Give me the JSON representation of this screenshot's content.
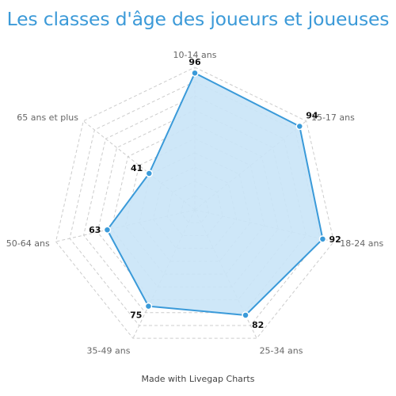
{
  "chart_data": {
    "type": "radar",
    "title": "Les classes d'âge des joueurs et joueuses",
    "categories": [
      "10-14 ans",
      "15-17 ans",
      "18-24 ans",
      "25-34 ans",
      "35-49 ans",
      "50-64 ans",
      "65 ans et plus"
    ],
    "series": [
      {
        "values": [
          96,
          94,
          92,
          82,
          75,
          63,
          41
        ]
      }
    ],
    "rlim": [
      0,
      100
    ],
    "grid": true,
    "legend": "none",
    "colors": {
      "line": "#3a9ad9",
      "fill": "#c9e4f7",
      "grid": "#cccccc"
    }
  },
  "footer": {
    "credit": "Made with Livegap Charts"
  }
}
